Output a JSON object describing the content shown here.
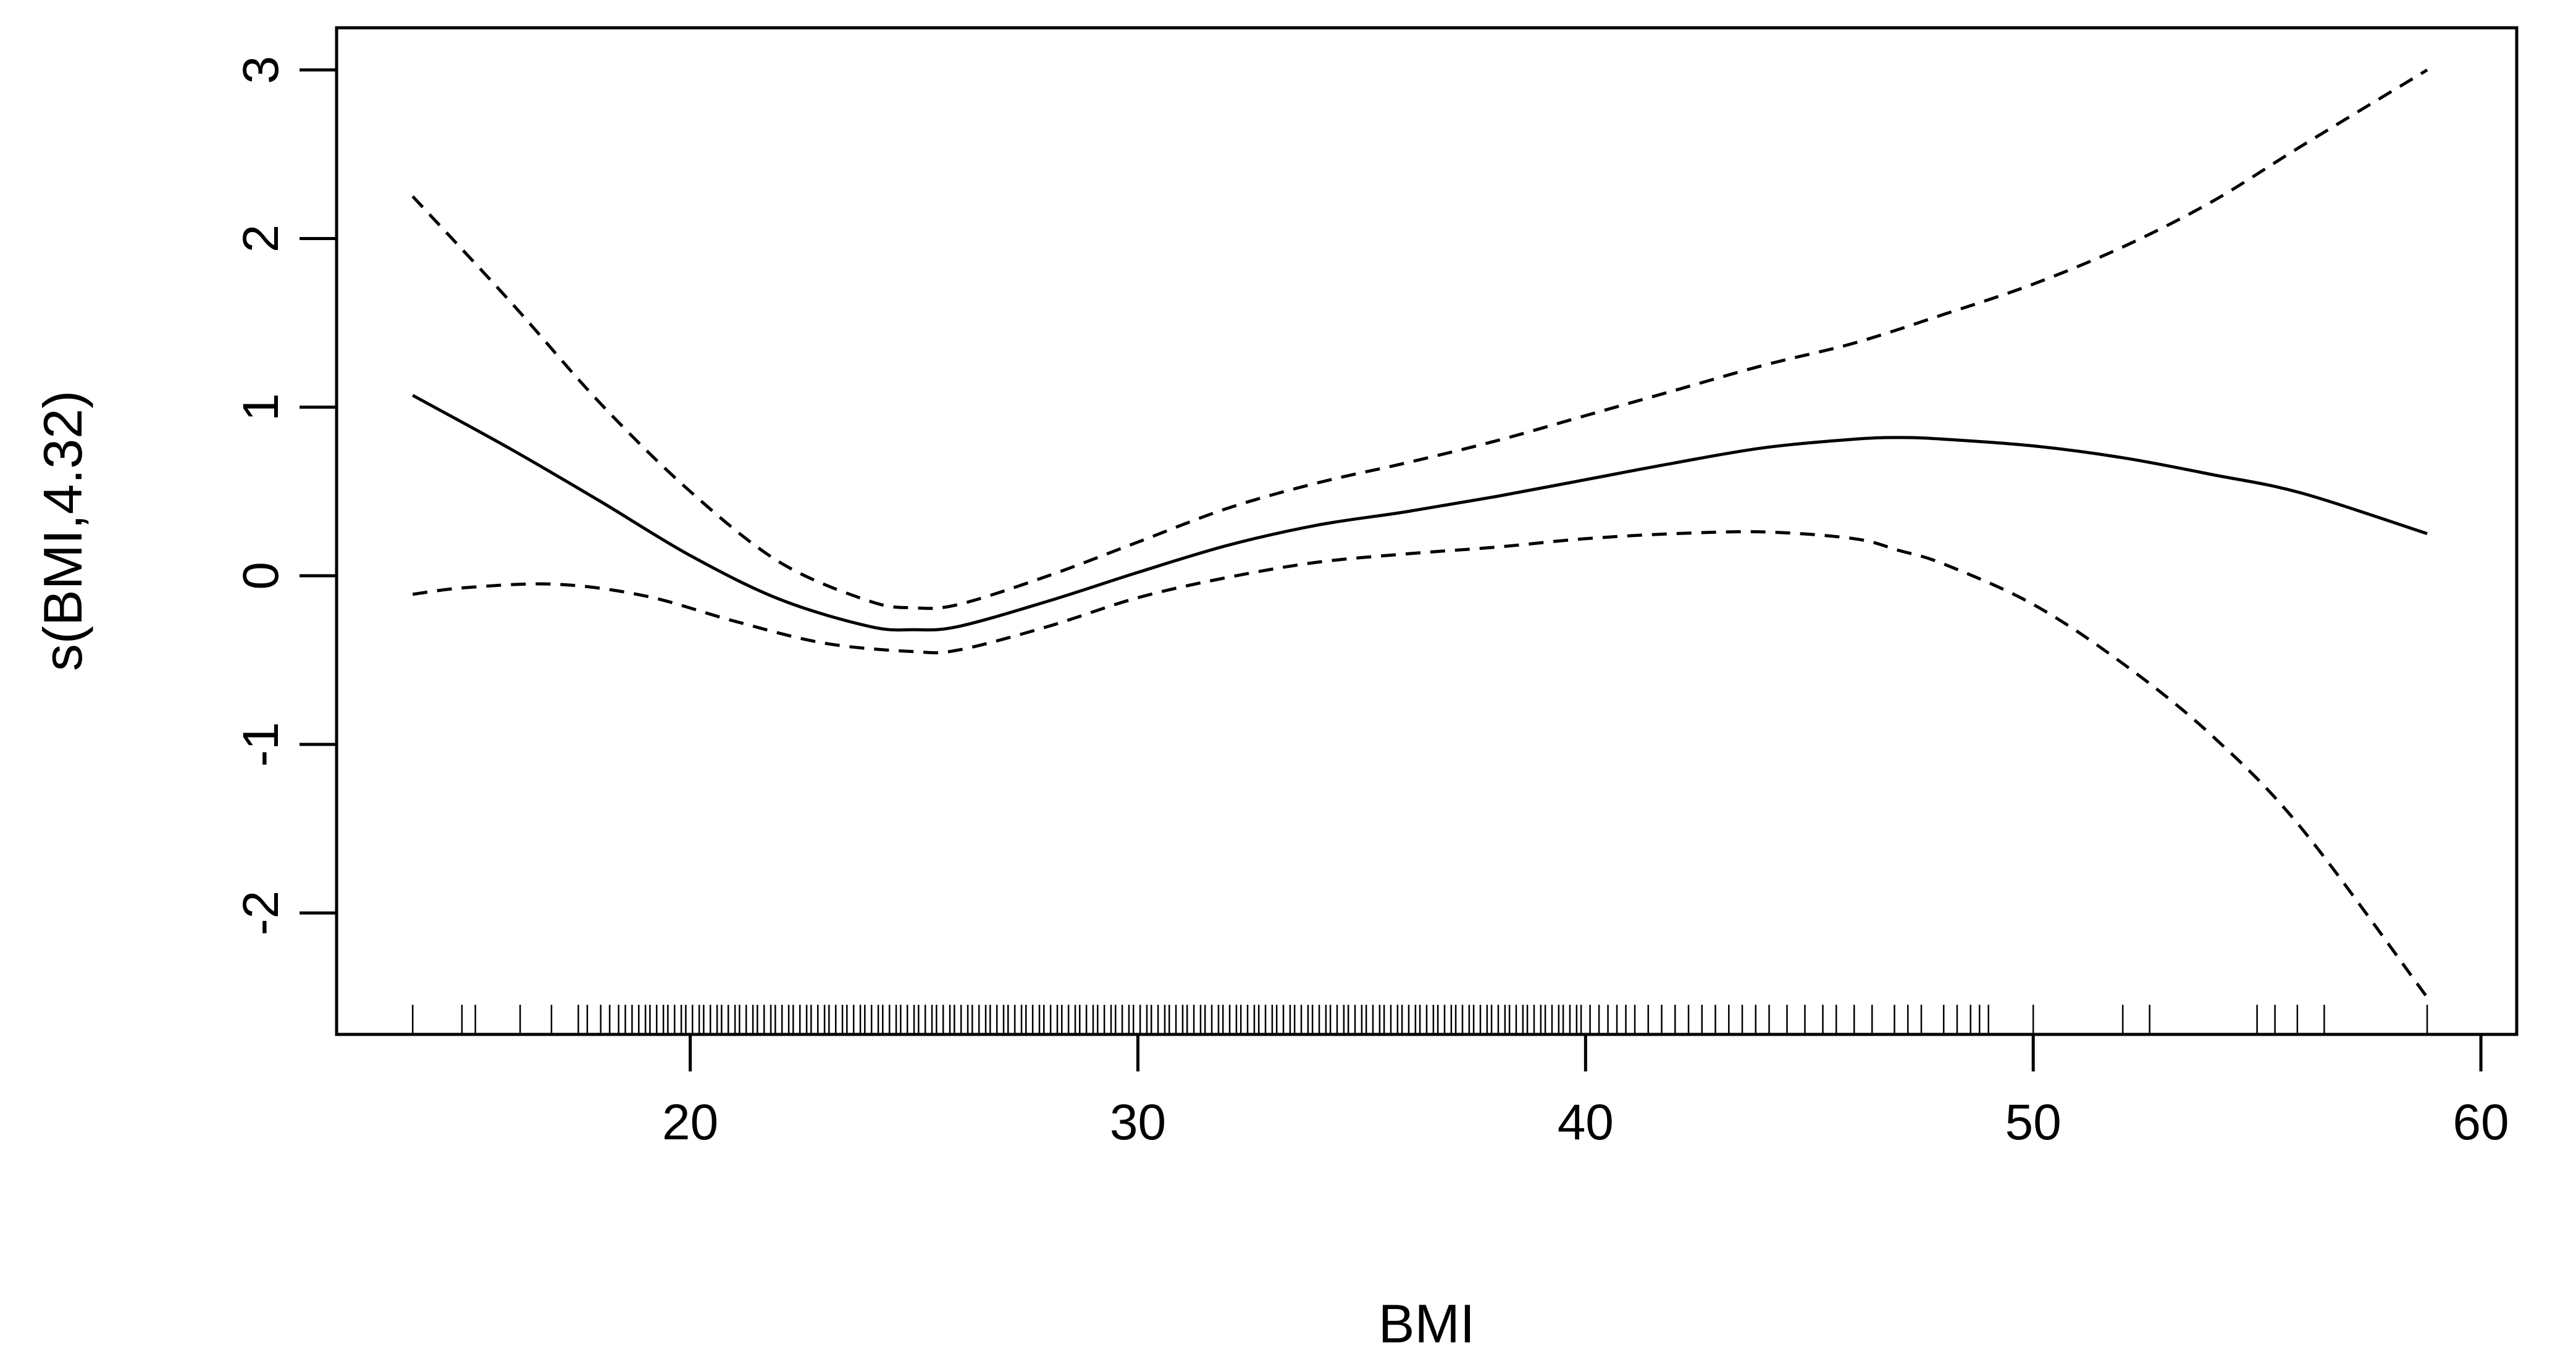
{
  "chart_data": {
    "type": "line",
    "title": "",
    "xlabel": "BMI",
    "ylabel": "s(BMI,4.32)",
    "xlim": [
      12.1,
      60.8
    ],
    "ylim": [
      -2.72,
      3.25
    ],
    "xticks": [
      20,
      30,
      40,
      50,
      60
    ],
    "xtick_labels": [
      "20",
      "30",
      "40",
      "50",
      "60"
    ],
    "yticks": [
      -2,
      -1,
      0,
      1,
      2,
      3
    ],
    "ytick_labels": [
      "-2",
      "-1",
      "0",
      "1",
      "2",
      "3"
    ],
    "grid": false,
    "legend": "none",
    "series": [
      {
        "role": "estimate",
        "style": "solid",
        "x": [
          13.8,
          16,
          18,
          20,
          22,
          24,
          25,
          26,
          28,
          30,
          32,
          34,
          36,
          38,
          40,
          42,
          44,
          46,
          47,
          48,
          50,
          52,
          54,
          56,
          58.8
        ],
        "y": [
          1.07,
          0.75,
          0.44,
          0.12,
          -0.14,
          -0.3,
          -0.32,
          -0.3,
          -0.15,
          0.02,
          0.18,
          0.3,
          0.38,
          0.47,
          0.57,
          0.67,
          0.76,
          0.81,
          0.82,
          0.81,
          0.77,
          0.7,
          0.6,
          0.49,
          0.25
        ]
      },
      {
        "role": "upper",
        "style": "dashed",
        "x": [
          13.8,
          16,
          18,
          20,
          22,
          24,
          25,
          26,
          28,
          30,
          32,
          34,
          36,
          38,
          40,
          42,
          44,
          46,
          48,
          50,
          52,
          54,
          56,
          58.8
        ],
        "y": [
          2.25,
          1.62,
          1.02,
          0.5,
          0.08,
          -0.15,
          -0.19,
          -0.17,
          0.0,
          0.2,
          0.4,
          0.55,
          0.67,
          0.8,
          0.95,
          1.1,
          1.25,
          1.38,
          1.55,
          1.73,
          1.95,
          2.22,
          2.55,
          3.0
        ]
      },
      {
        "role": "lower",
        "style": "dashed",
        "x": [
          13.8,
          15,
          17,
          19,
          21,
          23,
          25,
          26,
          28,
          30,
          32,
          34,
          36,
          38,
          40,
          42,
          44,
          46,
          47,
          48,
          50,
          52,
          54,
          56,
          58.8
        ],
        "y": [
          -0.11,
          -0.07,
          -0.05,
          -0.12,
          -0.27,
          -0.4,
          -0.45,
          -0.44,
          -0.3,
          -0.13,
          -0.01,
          0.08,
          0.13,
          0.17,
          0.22,
          0.25,
          0.26,
          0.22,
          0.15,
          0.07,
          -0.17,
          -0.52,
          -0.95,
          -1.5,
          -2.5
        ]
      }
    ],
    "rug": [
      13.8,
      14.9,
      15.2,
      16.2,
      16.9,
      17.5,
      17.7,
      18.0,
      18.2,
      18.4,
      18.55,
      18.7,
      18.85,
      19.0,
      19.1,
      19.25,
      19.4,
      19.5,
      19.65,
      19.8,
      19.9,
      20.05,
      20.2,
      20.3,
      20.45,
      20.6,
      20.7,
      20.85,
      21.0,
      21.1,
      21.25,
      21.4,
      21.5,
      21.65,
      21.8,
      21.9,
      22.05,
      22.2,
      22.3,
      22.45,
      22.6,
      22.7,
      22.85,
      23.0,
      23.1,
      23.25,
      23.4,
      23.5,
      23.65,
      23.8,
      23.9,
      24.05,
      24.2,
      24.3,
      24.45,
      24.6,
      24.7,
      24.85,
      25.0,
      25.1,
      25.25,
      25.4,
      25.5,
      25.65,
      25.8,
      25.9,
      26.05,
      26.2,
      26.3,
      26.45,
      26.6,
      26.7,
      26.85,
      27.0,
      27.1,
      27.25,
      27.4,
      27.5,
      27.65,
      27.8,
      27.9,
      28.05,
      28.2,
      28.3,
      28.45,
      28.6,
      28.7,
      28.85,
      29.0,
      29.1,
      29.25,
      29.4,
      29.5,
      29.65,
      29.8,
      29.9,
      30.05,
      30.2,
      30.3,
      30.45,
      30.6,
      30.7,
      30.85,
      31.0,
      31.1,
      31.25,
      31.4,
      31.5,
      31.65,
      31.8,
      31.9,
      32.05,
      32.2,
      32.3,
      32.45,
      32.6,
      32.7,
      32.85,
      33.0,
      33.1,
      33.25,
      33.4,
      33.5,
      33.65,
      33.8,
      33.9,
      34.05,
      34.2,
      34.3,
      34.45,
      34.6,
      34.7,
      34.85,
      35.0,
      35.1,
      35.25,
      35.4,
      35.5,
      35.65,
      35.8,
      35.9,
      36.05,
      36.2,
      36.3,
      36.45,
      36.6,
      36.7,
      36.85,
      37.0,
      37.1,
      37.25,
      37.4,
      37.5,
      37.65,
      37.8,
      37.9,
      38.05,
      38.2,
      38.3,
      38.45,
      38.6,
      38.7,
      38.85,
      39.0,
      39.1,
      39.25,
      39.4,
      39.5,
      39.65,
      39.8,
      39.9,
      40.1,
      40.3,
      40.5,
      40.7,
      40.9,
      41.1,
      41.4,
      41.7,
      42.0,
      42.3,
      42.6,
      42.9,
      43.2,
      43.5,
      43.8,
      44.1,
      44.5,
      44.9,
      45.3,
      45.6,
      46.0,
      46.4,
      46.9,
      47.2,
      47.5,
      48.0,
      48.3,
      48.6,
      48.8,
      49.0,
      50.0,
      52.0,
      52.6,
      55.0,
      55.4,
      55.9,
      56.5,
      58.8
    ]
  }
}
